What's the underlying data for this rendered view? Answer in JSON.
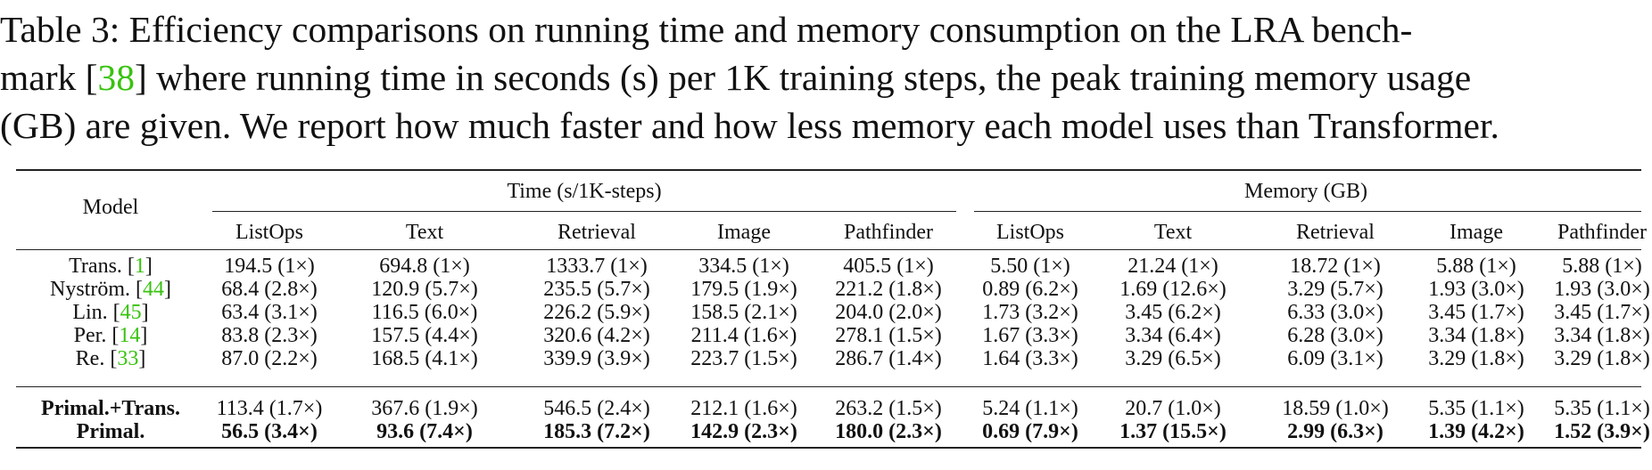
{
  "caption": {
    "line1_label": "Table 3:",
    "line1_text": "Efficiency comparisons on running time and memory consumption on the LRA bench-",
    "line2_pre": "mark [",
    "line2_cite": "38",
    "line2_post": "] where running time in seconds (s) per 1K training steps, the peak training memory usage",
    "line3": "(GB) are given. We report how much faster and how less memory each model uses than Transformer."
  },
  "table": {
    "model_header": "Model",
    "groups": [
      "Time (s/1K-steps)",
      "Memory (GB)"
    ],
    "columns": [
      "ListOps",
      "Text",
      "Retrieval",
      "Image",
      "Pathfinder",
      "ListOps",
      "Text",
      "Retrieval",
      "Image",
      "Pathfinder"
    ],
    "rows": [
      {
        "model": "Trans. [",
        "cite": "1",
        "close": "]",
        "bold": false,
        "cells": [
          "194.5 (1×)",
          "694.8 (1×)",
          "1333.7 (1×)",
          "334.5 (1×)",
          "405.5 (1×)",
          "5.50 (1×)",
          "21.24 (1×)",
          "18.72 (1×)",
          "5.88 (1×)",
          "5.88 (1×)"
        ]
      },
      {
        "model": "Nyström. [",
        "cite": "44",
        "close": "]",
        "bold": false,
        "cells": [
          "68.4 (2.8×)",
          "120.9 (5.7×)",
          "235.5 (5.7×)",
          "179.5 (1.9×)",
          "221.2 (1.8×)",
          "0.89 (6.2×)",
          "1.69 (12.6×)",
          "3.29 (5.7×)",
          "1.93 (3.0×)",
          "1.93 (3.0×)"
        ]
      },
      {
        "model": "Lin. [",
        "cite": "45",
        "close": "]",
        "bold": false,
        "cells": [
          "63.4 (3.1×)",
          "116.5 (6.0×)",
          "226.2 (5.9×)",
          "158.5 (2.1×)",
          "204.0 (2.0×)",
          "1.73 (3.2×)",
          "3.45 (6.2×)",
          "6.33 (3.0×)",
          "3.45 (1.7×)",
          "3.45 (1.7×)"
        ]
      },
      {
        "model": "Per. [",
        "cite": "14",
        "close": "]",
        "bold": false,
        "cells": [
          "83.8 (2.3×)",
          "157.5 (4.4×)",
          "320.6 (4.2×)",
          "211.4 (1.6×)",
          "278.1 (1.5×)",
          "1.67 (3.3×)",
          "3.34 (6.4×)",
          "6.28 (3.0×)",
          "3.34 (1.8×)",
          "3.34 (1.8×)"
        ]
      },
      {
        "model": "Re. [",
        "cite": "33",
        "close": "]",
        "bold": false,
        "cells": [
          "87.0 (2.2×)",
          "168.5 (4.1×)",
          "339.9 (3.9×)",
          "223.7 (1.5×)",
          "286.7 (1.4×)",
          "1.64 (3.3×)",
          "3.29 (6.5×)",
          "6.09 (3.1×)",
          "3.29 (1.8×)",
          "3.29 (1.8×)"
        ]
      },
      {
        "model": "Primal.+Trans.",
        "cite": "",
        "close": "",
        "bold": true,
        "values_bold": false,
        "cells": [
          "113.4 (1.7×)",
          "367.6 (1.9×)",
          "546.5 (2.4×)",
          "212.1 (1.6×)",
          "263.2 (1.5×)",
          "5.24 (1.1×)",
          "20.7 (1.0×)",
          "18.59 (1.0×)",
          "5.35 (1.1×)",
          "5.35 (1.1×)"
        ]
      },
      {
        "model": "Primal.",
        "cite": "",
        "close": "",
        "bold": true,
        "values_bold": true,
        "cells": [
          "56.5 (3.4×)",
          "93.6 (7.4×)",
          "185.3 (7.2×)",
          "142.9 (2.3×)",
          "180.0 (2.3×)",
          "0.69 (7.9×)",
          "1.37 (15.5×)",
          "2.99 (6.3×)",
          "1.39 (4.2×)",
          "1.52 (3.9×)"
        ]
      }
    ]
  },
  "colors": {
    "citation": "#38c20f",
    "text": "#111111",
    "rule": "#222222"
  }
}
